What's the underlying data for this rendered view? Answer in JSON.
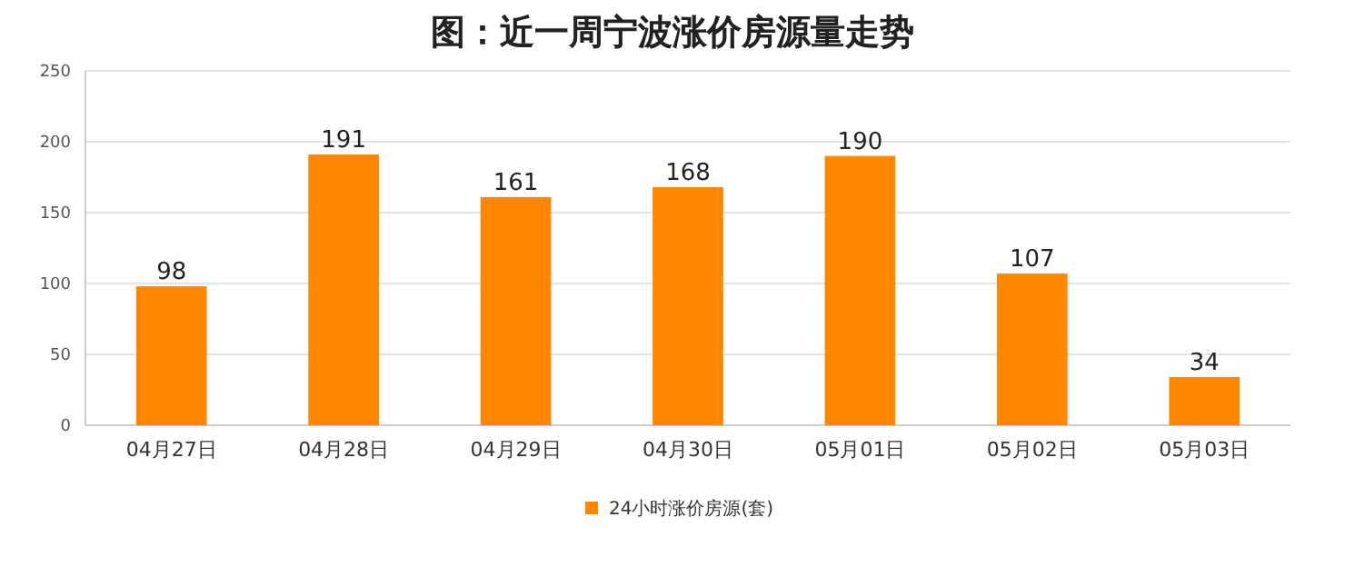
{
  "chart_data": {
    "type": "bar",
    "title": "图：近一周宁波涨价房源量走势",
    "categories": [
      "04月27日",
      "04月28日",
      "04月29日",
      "04月30日",
      "05月01日",
      "05月02日",
      "05月03日"
    ],
    "series": [
      {
        "name": "24小时涨价房源(套)",
        "color": "#ff8800",
        "values": [
          98,
          191,
          161,
          168,
          190,
          107,
          34
        ]
      }
    ],
    "ylim": [
      0,
      250
    ],
    "yticks": [
      0,
      50,
      100,
      150,
      200,
      250
    ],
    "grid": "y",
    "legend": "bottom",
    "data_labels": true
  }
}
